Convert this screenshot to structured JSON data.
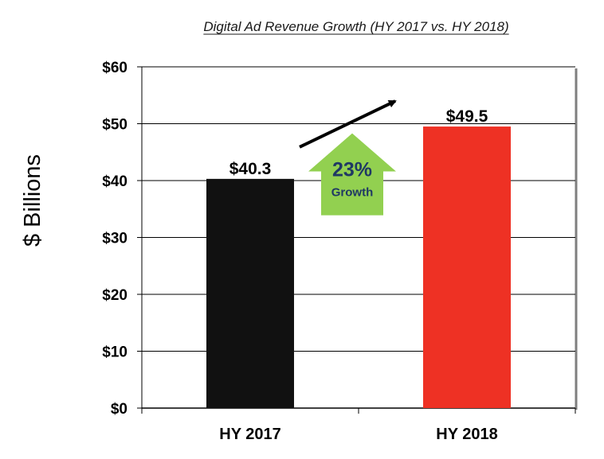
{
  "chart_data": {
    "type": "bar",
    "title": "Digital Ad Revenue Growth (HY 2017 vs. HY 2018)",
    "ylabel": "$ Billions",
    "xlabel": "",
    "categories": [
      "HY 2017",
      "HY 2018"
    ],
    "values": [
      40.3,
      49.5
    ],
    "data_labels": [
      "$40.3",
      "$49.5"
    ],
    "bar_colors": [
      "#111111",
      "#ee3124"
    ],
    "ylim": [
      0,
      60
    ],
    "yticks": [
      0,
      10,
      20,
      30,
      40,
      50,
      60
    ],
    "ytick_labels": [
      "$0",
      "$10",
      "$20",
      "$30",
      "$40",
      "$50",
      "$60"
    ],
    "grid": true,
    "annotation": {
      "percent": "23%",
      "text": "Growth",
      "color": "#92d050"
    }
  }
}
